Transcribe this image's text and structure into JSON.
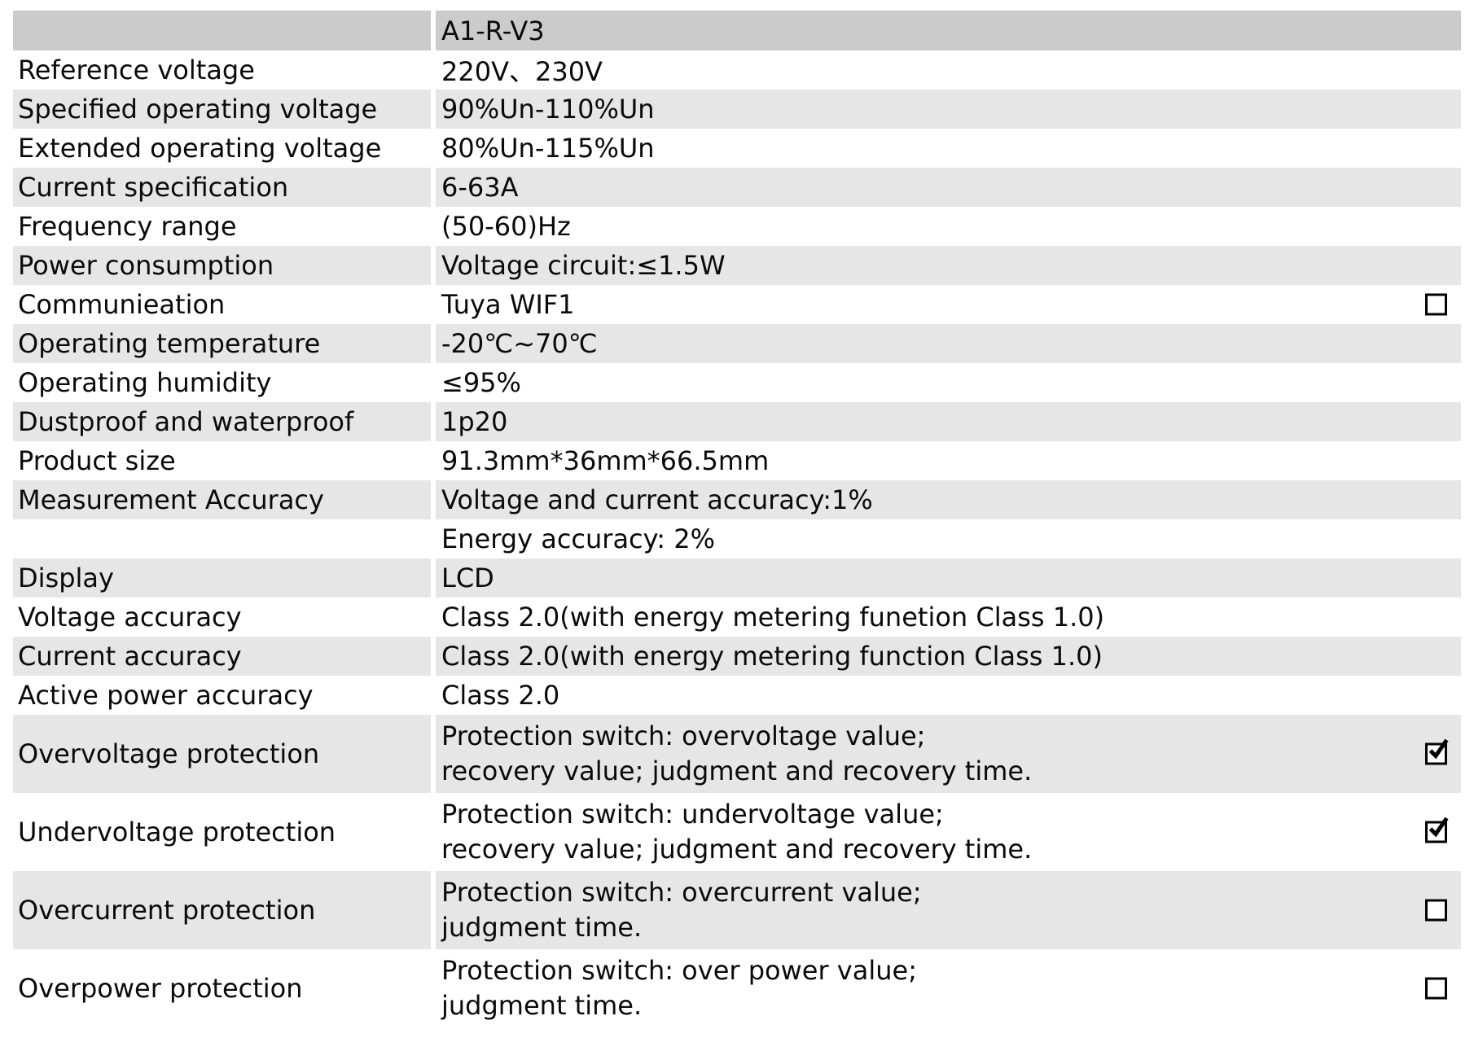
{
  "colors": {
    "header_bg": "#cbcbcb",
    "row_alt_bg": "#e6e6e6",
    "row_bg": "#ffffff",
    "text": "#0a0a0a",
    "checkbox_border": "#000000"
  },
  "table": {
    "header": {
      "label": "",
      "value": "A1-R-V3"
    },
    "rows": [
      {
        "label": "Reference voltage",
        "value": "220V、230V",
        "checkbox": null
      },
      {
        "label": "Specified operating voltage",
        "value": "90%Un-110%Un",
        "checkbox": null
      },
      {
        "label": "Extended operating voltage",
        "value": "80%Un-115%Un",
        "checkbox": null
      },
      {
        "label": "Current specification",
        "value": "6-63A",
        "checkbox": null
      },
      {
        "label": "Frequency range",
        "value": "(50-60)Hz",
        "checkbox": null
      },
      {
        "label": "Power consumption",
        "value": "Voltage circuit:≤1.5W",
        "checkbox": null
      },
      {
        "label": "Communieation",
        "value": "Tuya WIF1",
        "checkbox": "unchecked"
      },
      {
        "label": "Operating temperature",
        "value": "-20℃~70℃",
        "checkbox": null
      },
      {
        "label": "Operating humidity",
        "value": "≤95%",
        "checkbox": null
      },
      {
        "label": "Dustproof and waterproof",
        "value": "1p20",
        "checkbox": null
      },
      {
        "label": "Product size",
        "value": "91.3mm*36mm*66.5mm",
        "checkbox": null
      },
      {
        "label": "Measurement Accuracy",
        "value": "Voltage and current accuracy:1%",
        "checkbox": null
      },
      {
        "label": "",
        "value": "Energy accuracy: 2%",
        "checkbox": null
      },
      {
        "label": "Display",
        "value": "LCD",
        "checkbox": null
      },
      {
        "label": "Voltage accuracy",
        "value": "Class 2.0(with energy metering funetion Class 1.0)",
        "checkbox": null
      },
      {
        "label": "Current accuracy",
        "value": "Class 2.0(with energy metering function Class 1.0)",
        "checkbox": null
      },
      {
        "label": "Active power accuracy",
        "value": "Class 2.0",
        "checkbox": null
      },
      {
        "label": "Overvoltage protection",
        "value_lines": [
          "Protection switch: overvoltage value;",
          "recovery value; judgment and recovery time."
        ],
        "checkbox": "checked"
      },
      {
        "label": "Undervoltage protection",
        "value_lines": [
          "Protection switch: undervoltage value;",
          "recovery value; judgment and recovery time."
        ],
        "checkbox": "checked"
      },
      {
        "label": "Overcurrent protection",
        "value_lines": [
          "Protection switch: overcurrent value;",
          "judgment time."
        ],
        "checkbox": "unchecked"
      },
      {
        "label": "Overpower protection",
        "value_lines": [
          "Protection switch: over power value;",
          "judgment time."
        ],
        "checkbox": "unchecked"
      }
    ]
  }
}
